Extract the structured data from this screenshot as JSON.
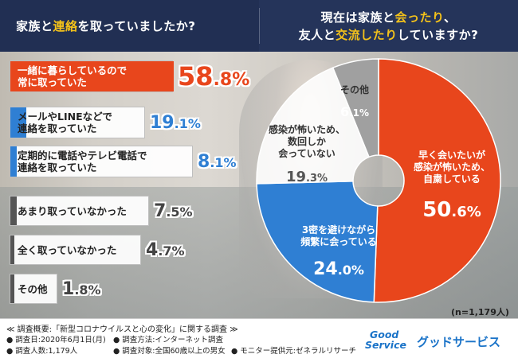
{
  "header": {
    "left_prefix": "家族と",
    "left_highlight": "連絡",
    "left_suffix": "を取っていましたか?",
    "right_line1_prefix": "現在は家族と",
    "right_line1_highlight": "会ったり",
    "right_line1_suffix": "、",
    "right_line2_prefix": "友人と",
    "right_line2_highlight": "交流したり",
    "right_line2_suffix": "していますか?"
  },
  "colors": {
    "header_bg": "#212f53",
    "highlight": "#f4c21a",
    "primary_bar": "#e8461c",
    "secondary_bar": "#2f7fd3",
    "muted_bar": "#555555",
    "pie_gray": "#a0a0a0",
    "brand_blue": "#1a73c8"
  },
  "chart_data": [
    {
      "type": "bar",
      "orientation": "horizontal",
      "title": "家族と連絡を取っていましたか?",
      "unit": "%",
      "categories": [
        [
          "一緒に暮らしているので",
          "常に取っていた"
        ],
        [
          "メールやLINEなどで",
          "連絡を取っていた"
        ],
        [
          "定期的に電話やテレビ電話で",
          "連絡を取っていた"
        ],
        [
          "あまり取っていなかった"
        ],
        [
          "全く取っていなかった"
        ],
        [
          "その他"
        ]
      ],
      "values": [
        58.8,
        19.1,
        8.1,
        7.5,
        4.7,
        1.8
      ],
      "value_labels": [
        {
          "int": "58",
          "dec": ".8%"
        },
        {
          "int": "19",
          "dec": ".1%"
        },
        {
          "int": "8",
          "dec": ".1%"
        },
        {
          "int": "7",
          "dec": ".5%"
        },
        {
          "int": "4",
          "dec": ".7%"
        },
        {
          "int": "1",
          "dec": ".8%"
        }
      ],
      "bar_colors": [
        "#e8461c",
        "#2f7fd3",
        "#2f7fd3",
        "#555555",
        "#555555",
        "#555555"
      ],
      "value_colors": [
        "#e8461c",
        "#2f7fd3",
        "#2f7fd3",
        "#444444",
        "#444444",
        "#444444"
      ]
    },
    {
      "type": "pie",
      "variant": "donut",
      "title": "現在は家族と会ったり、友人と交流したりしていますか?",
      "unit": "%",
      "slices": [
        {
          "lines": [
            "早く会いたいが",
            "感染が怖いため、",
            "自粛している"
          ],
          "value": 50.6,
          "int": "50",
          "dec": ".6%",
          "color": "#e8461c"
        },
        {
          "lines": [
            "3密を避けながら",
            "頻繁に会っている"
          ],
          "value": 24.0,
          "int": "24",
          "dec": ".0%",
          "color": "#2f7fd3"
        },
        {
          "lines": [
            "感染が怖いため、",
            "数回しか",
            "会っていない"
          ],
          "value": 19.3,
          "int": "19",
          "dec": ".3%",
          "color": "#ffffff"
        },
        {
          "lines": [
            "その他"
          ],
          "value": 6.1,
          "int": "6",
          "dec": ".1%",
          "color": "#a0a0a0"
        }
      ],
      "sample_label": "(n=1,179人)"
    }
  ],
  "footer": {
    "title": "≪ 調査概要:「新型コロナウイルスと心の変化」に関する調査 ≫",
    "items": [
      "● 調査日:2020年6月1日(月)",
      "● 調査方法:インターネット調査",
      "● 調査人数:1,179人",
      "● 調査対象:全国60歳以上の男女",
      "● モニター提供元:ゼネラルリサーチ"
    ],
    "logo_line1": "Good",
    "logo_line2": "Service",
    "brand": "グッドサービス"
  }
}
